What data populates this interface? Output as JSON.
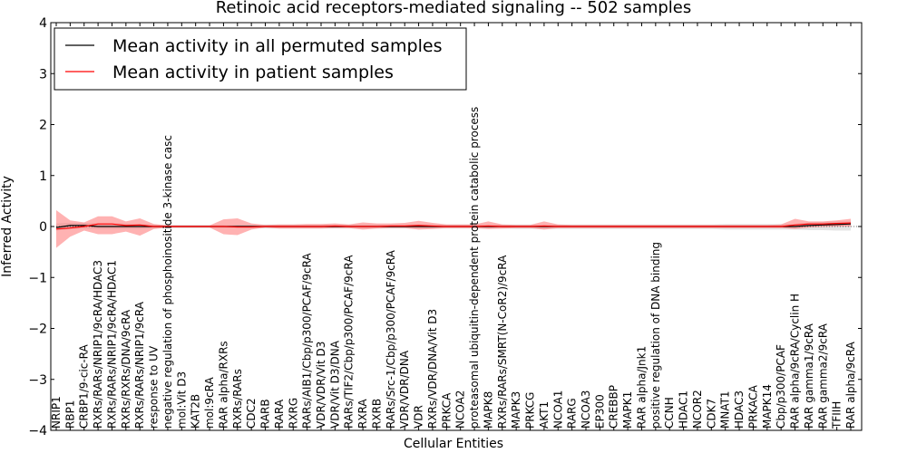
{
  "chart_data": {
    "type": "line",
    "title": "Retinoic acid receptors-mediated signaling -- 502 samples",
    "xlabel": "Cellular Entities",
    "ylabel": "Inferred Activity",
    "ylim": [
      -4,
      4
    ],
    "yticks": [
      "−4",
      "−3",
      "−2",
      "−1",
      "0",
      "1",
      "2",
      "3",
      "4"
    ],
    "legend_position": "top-left",
    "categories": [
      "NRIP1",
      "RBP1",
      "CRBP1/9-cic-RA",
      "RXRs/RARs/NRIP1/9cRA/HDAC3",
      "RXRs/RARs/NRIP1/9cRA/HDAC1",
      "RXRs/RXRs/DNA/9cRA",
      "RXRs/RARs/NRIP1/9cRA",
      "response to UV",
      "negative regulation of phosphoinositide 3-kinase casc",
      "mol:Vit D3",
      "KAT2B",
      "mol:9cRA",
      "RAR alpha/RXRs",
      "RXRs/RARs",
      "CDC2",
      "RARB",
      "RARA",
      "RXRG",
      "RARs/AIB1/Cbp/p300/PCAF/9cRA",
      "VDR/VDR/Vit D3",
      "VDR/Vit D3/DNA",
      "RARs/TIF2/Cbp/p300/PCAF/9cRA",
      "RXRA",
      "RXRB",
      "RARs/Src-1/Cbp/p300/PCAF/9cRA",
      "VDR/VDR/DNA",
      "VDR",
      "RXRs/VDR/DNA/Vit D3",
      "PRKCA",
      "NCOA2",
      "proteasomal ubiquitin-dependent protein catabolic process",
      "MAPK8",
      "RXRs/RARs/SMRT(N-CoR2)/9cRA",
      "MAPK3",
      "PRKCG",
      "AKT1",
      "NCOA1",
      "RARG",
      "NCOA3",
      "EP300",
      "CREBBP",
      "MAPK1",
      "RAR alpha/Jnk1",
      "positive regulation of DNA binding",
      "CCNH",
      "HDAC1",
      "NCOR2",
      "CDK7",
      "MNAT1",
      "HDAC3",
      "PRKACA",
      "MAPK14",
      "Cbp/p300/PCAF",
      "RAR alpha/9cRA/Cyclin H",
      "RAR gamma1/9cRA",
      "RAR gamma2/9cRA",
      "TFIIH",
      "RAR alpha/9cRA"
    ],
    "series": [
      {
        "name": "Mean activity in all permuted samples",
        "color": "#000000",
        "values": [
          -0.02,
          0.02,
          0.02,
          0.0,
          0.0,
          0.0,
          0.0,
          0.0,
          0.0,
          0.0,
          0.0,
          0.0,
          0.0,
          0.0,
          0.0,
          0.0,
          0.0,
          0.0,
          0.0,
          0.0,
          0.0,
          0.0,
          0.0,
          0.0,
          0.0,
          0.0,
          0.0,
          0.0,
          0.0,
          0.0,
          0.0,
          0.0,
          0.0,
          0.0,
          0.0,
          0.0,
          0.0,
          0.0,
          0.0,
          0.0,
          0.0,
          0.0,
          0.0,
          0.0,
          0.0,
          0.0,
          0.0,
          0.0,
          0.0,
          0.0,
          0.0,
          0.0,
          0.0,
          0.0,
          0.02,
          0.03,
          0.04,
          0.05
        ],
        "band_low": [
          -0.08,
          -0.05,
          -0.04,
          -0.05,
          -0.05,
          -0.05,
          -0.05,
          -0.04,
          -0.03,
          -0.03,
          -0.03,
          -0.03,
          -0.03,
          -0.03,
          -0.03,
          -0.04,
          -0.04,
          -0.04,
          -0.04,
          -0.04,
          -0.04,
          -0.04,
          -0.04,
          -0.04,
          -0.04,
          -0.04,
          -0.04,
          -0.04,
          -0.04,
          -0.04,
          -0.04,
          -0.04,
          -0.04,
          -0.05,
          -0.05,
          -0.05,
          -0.05,
          -0.05,
          -0.05,
          -0.05,
          -0.05,
          -0.05,
          -0.05,
          -0.05,
          -0.05,
          -0.05,
          -0.05,
          -0.05,
          -0.06,
          -0.06,
          -0.06,
          -0.06,
          -0.06,
          -0.06,
          -0.07,
          -0.07,
          -0.08,
          -0.08
        ],
        "band_high": [
          0.06,
          0.07,
          0.07,
          0.06,
          0.06,
          0.06,
          0.05,
          0.04,
          0.03,
          0.03,
          0.03,
          0.03,
          0.03,
          0.03,
          0.03,
          0.04,
          0.04,
          0.04,
          0.04,
          0.04,
          0.04,
          0.04,
          0.04,
          0.04,
          0.04,
          0.04,
          0.04,
          0.04,
          0.04,
          0.04,
          0.04,
          0.04,
          0.04,
          0.04,
          0.04,
          0.04,
          0.04,
          0.04,
          0.04,
          0.04,
          0.04,
          0.04,
          0.04,
          0.04,
          0.04,
          0.04,
          0.04,
          0.04,
          0.05,
          0.05,
          0.05,
          0.05,
          0.05,
          0.05,
          0.08,
          0.09,
          0.1,
          0.1
        ]
      },
      {
        "name": "Mean activity in patient samples",
        "color": "#ff0000",
        "values": [
          -0.05,
          -0.03,
          0.0,
          0.05,
          0.05,
          0.02,
          0.03,
          0.0,
          0.0,
          0.0,
          0.0,
          0.0,
          0.0,
          -0.01,
          -0.01,
          0.0,
          0.0,
          0.0,
          0.0,
          0.0,
          0.01,
          0.0,
          0.0,
          0.0,
          0.01,
          0.01,
          0.02,
          0.01,
          0.0,
          0.0,
          0.0,
          0.01,
          0.0,
          0.0,
          0.0,
          0.01,
          0.0,
          0.0,
          0.0,
          0.0,
          0.0,
          0.0,
          0.0,
          0.0,
          0.0,
          0.0,
          0.0,
          0.0,
          0.0,
          0.0,
          0.0,
          0.0,
          0.0,
          0.03,
          0.05,
          0.05,
          0.06,
          0.07
        ],
        "band_low": [
          -0.42,
          -0.2,
          -0.08,
          -0.15,
          -0.15,
          -0.1,
          -0.18,
          -0.05,
          -0.02,
          -0.02,
          -0.02,
          -0.02,
          -0.15,
          -0.17,
          -0.06,
          -0.02,
          -0.04,
          -0.04,
          -0.04,
          -0.04,
          -0.03,
          -0.03,
          -0.06,
          -0.04,
          -0.03,
          -0.03,
          -0.06,
          -0.05,
          -0.03,
          -0.03,
          -0.03,
          -0.05,
          -0.04,
          -0.03,
          -0.03,
          -0.06,
          -0.03,
          -0.03,
          -0.03,
          -0.03,
          -0.03,
          -0.03,
          -0.03,
          -0.03,
          -0.03,
          -0.03,
          -0.03,
          -0.03,
          -0.03,
          -0.03,
          -0.03,
          -0.03,
          -0.03,
          -0.05,
          -0.02,
          -0.01,
          0.0,
          0.0
        ],
        "band_high": [
          0.32,
          0.12,
          0.08,
          0.2,
          0.2,
          0.1,
          0.16,
          0.05,
          0.02,
          0.02,
          0.02,
          0.02,
          0.14,
          0.16,
          0.06,
          0.03,
          0.04,
          0.04,
          0.05,
          0.05,
          0.06,
          0.04,
          0.08,
          0.06,
          0.06,
          0.07,
          0.11,
          0.07,
          0.04,
          0.04,
          0.04,
          0.1,
          0.04,
          0.03,
          0.03,
          0.1,
          0.04,
          0.03,
          0.03,
          0.03,
          0.03,
          0.03,
          0.03,
          0.03,
          0.03,
          0.03,
          0.03,
          0.03,
          0.03,
          0.03,
          0.03,
          0.03,
          0.04,
          0.15,
          0.1,
          0.1,
          0.12,
          0.15
        ]
      }
    ]
  }
}
